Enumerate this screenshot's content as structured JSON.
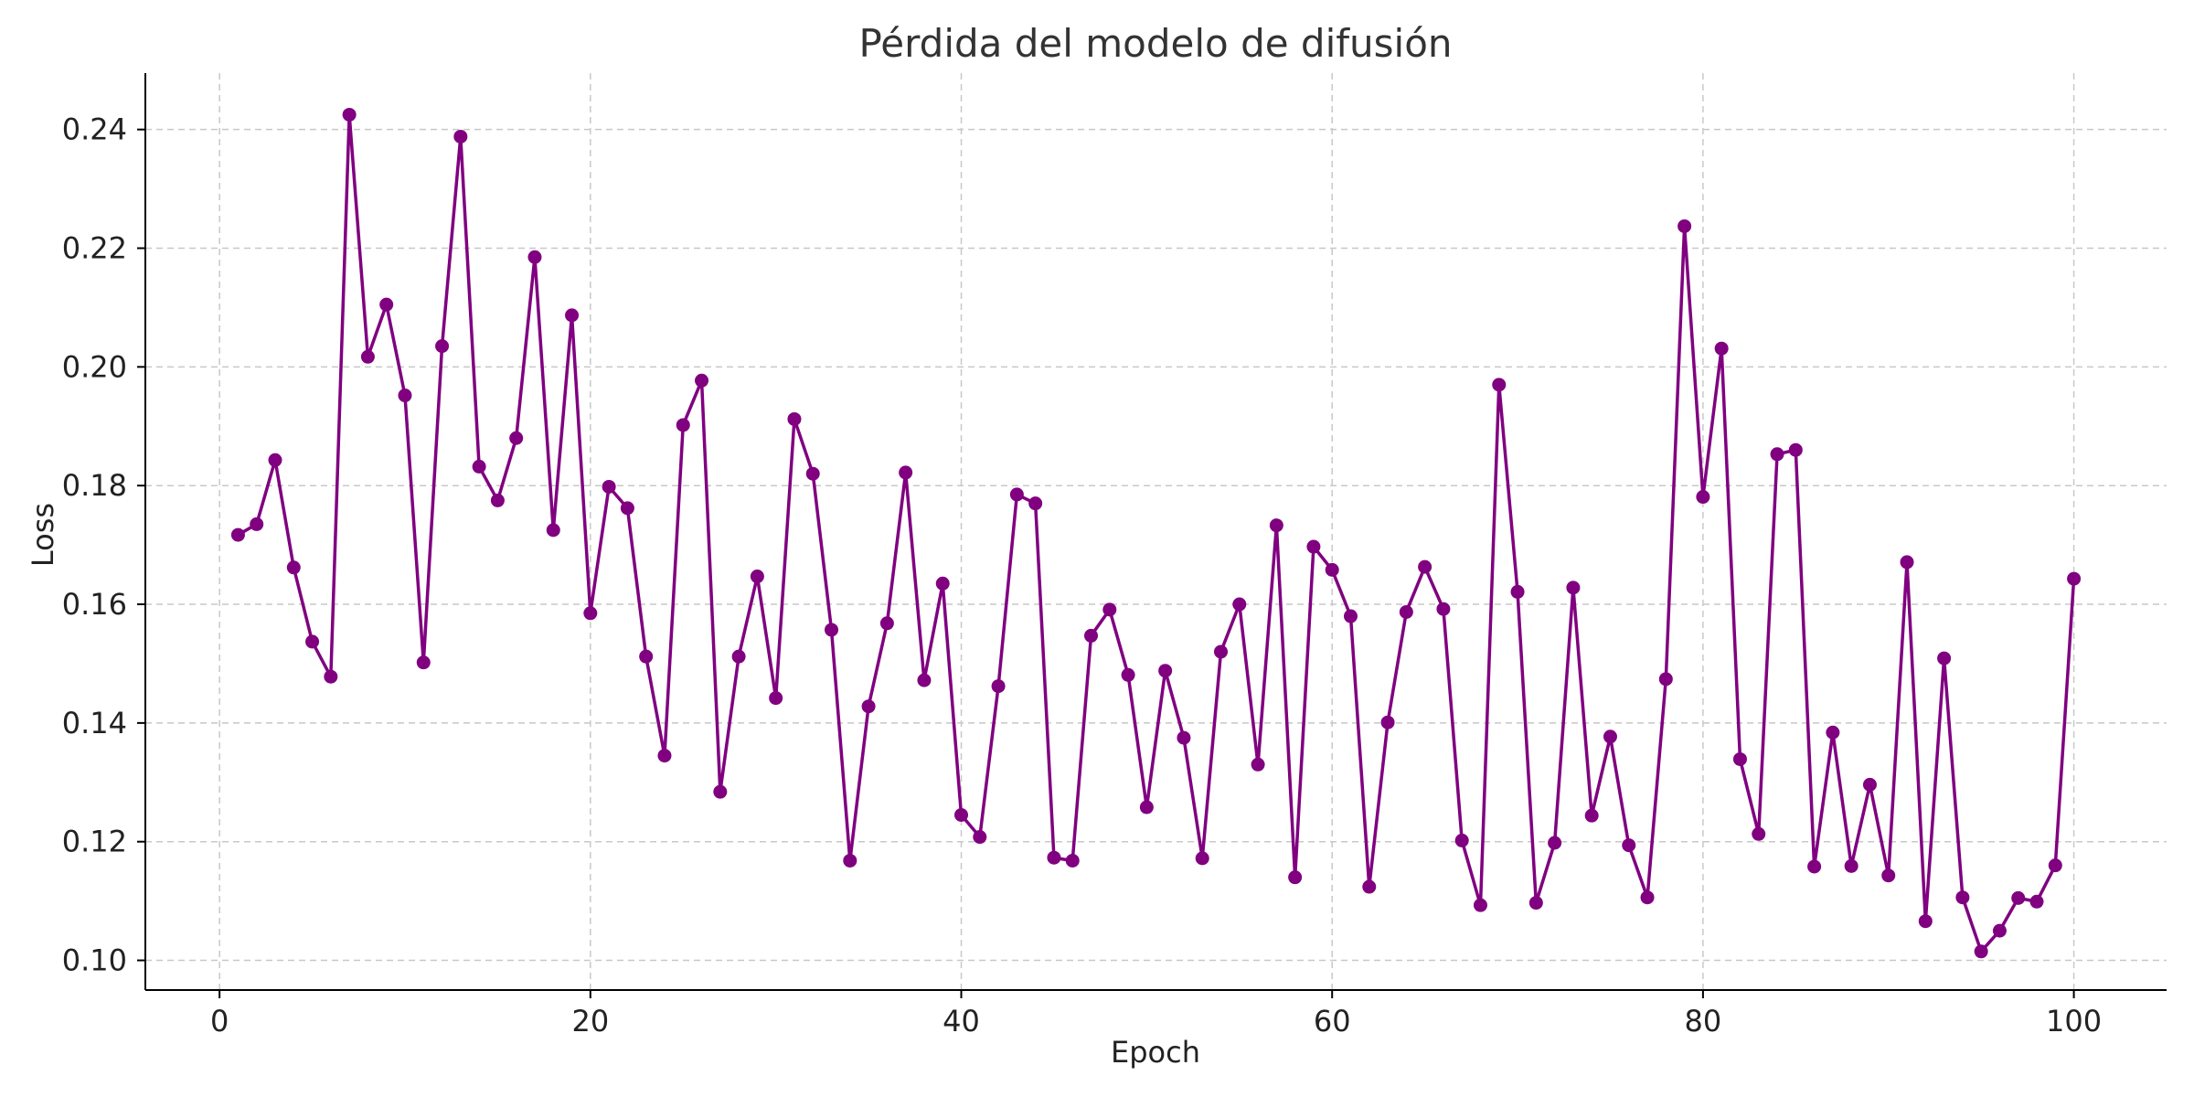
{
  "chart_data": {
    "type": "line",
    "title": "Pérdida del modelo de difusión",
    "xlabel": "Epoch",
    "ylabel": "Loss",
    "xlim": [
      -4,
      105
    ],
    "ylim": [
      0.095,
      0.2495
    ],
    "xticks": [
      0,
      20,
      40,
      60,
      80,
      100
    ],
    "yticks": [
      0.1,
      0.12,
      0.14,
      0.16,
      0.18,
      0.2,
      0.22,
      0.24
    ],
    "grid": true,
    "marker": "circle",
    "colors": {
      "series": "#800080"
    },
    "x": [
      1,
      2,
      3,
      4,
      5,
      6,
      7,
      8,
      9,
      10,
      11,
      12,
      13,
      14,
      15,
      16,
      17,
      18,
      19,
      20,
      21,
      22,
      23,
      24,
      25,
      26,
      27,
      28,
      29,
      30,
      31,
      32,
      33,
      34,
      35,
      36,
      37,
      38,
      39,
      40,
      41,
      42,
      43,
      44,
      45,
      46,
      47,
      48,
      49,
      50,
      51,
      52,
      53,
      54,
      55,
      56,
      57,
      58,
      59,
      60,
      61,
      62,
      63,
      64,
      65,
      66,
      67,
      68,
      69,
      70,
      71,
      72,
      73,
      74,
      75,
      76,
      77,
      78,
      79,
      80,
      81,
      82,
      83,
      84,
      85,
      86,
      87,
      88,
      89,
      90,
      91,
      92,
      93,
      94,
      95,
      96,
      97,
      98,
      99,
      100
    ],
    "series": [
      {
        "values": [
          0.1717,
          0.1735,
          0.1843,
          0.1662,
          0.1537,
          0.1478,
          0.2425,
          0.2017,
          0.2105,
          0.1952,
          0.1502,
          0.2035,
          0.2388,
          0.1832,
          0.1775,
          0.188,
          0.2185,
          0.1725,
          0.2087,
          0.1585,
          0.1798,
          0.1762,
          0.1512,
          0.1345,
          0.1902,
          0.1977,
          0.1284,
          0.1512,
          0.1647,
          0.1442,
          0.1912,
          0.182,
          0.1557,
          0.1168,
          0.1428,
          0.1568,
          0.1822,
          0.1472,
          0.1635,
          0.1245,
          0.1208,
          0.1462,
          0.1785,
          0.177,
          0.1173,
          0.1168,
          0.1547,
          0.1591,
          0.1481,
          0.1258,
          0.1488,
          0.1375,
          0.1172,
          0.152,
          0.16,
          0.133,
          0.1733,
          0.114,
          0.1697,
          0.1658,
          0.158,
          0.1124,
          0.1401,
          0.1587,
          0.1663,
          0.1592,
          0.1202,
          0.1093,
          0.197,
          0.1621,
          0.1097,
          0.1198,
          0.1628,
          0.1244,
          0.1377,
          0.1194,
          0.1106,
          0.1474,
          0.2237,
          0.1781,
          0.2031,
          0.1339,
          0.1213,
          0.1853,
          0.186,
          0.1158,
          0.1384,
          0.1159,
          0.1296,
          0.1143,
          0.1671,
          0.1066,
          0.1509,
          0.1106,
          0.1015,
          0.105,
          0.1105,
          0.1099,
          0.116,
          0.1643
        ]
      }
    ]
  }
}
